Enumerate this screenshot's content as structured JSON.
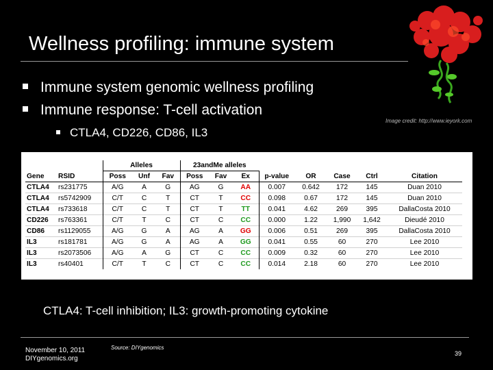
{
  "slide": {
    "title": "Wellness profiling: immune system",
    "image_credit": "Image credit: http://www.ieyork.com",
    "bullets": [
      "Immune system genomic wellness profiling",
      "Immune response: T-cell activation"
    ],
    "sub_bullets": [
      "CTLA4, CD226, CD86, IL3"
    ],
    "conclusion": "CTLA4: T-cell inhibition; IL3: growth-promoting cytokine",
    "footer": {
      "date": "November 10, 2011",
      "org": "DIYgenomics.org",
      "source": "Source: DIYgenomics",
      "page": "39"
    }
  },
  "colors": {
    "background": "#000000",
    "molecule_red": "#d81e1e",
    "molecule_green": "#3aa81e",
    "genotype_red": "#e00000",
    "genotype_green": "#1f9a1f"
  },
  "icons": [
    "protein-structure-image"
  ],
  "table": {
    "group_headers": {
      "alleles": "Alleles",
      "twentythree": "23andMe alleles"
    },
    "headers": [
      "Gene",
      "RSID",
      "Poss",
      "Unf",
      "Fav",
      "Poss",
      "Fav",
      "Ex",
      "p-value",
      "OR",
      "Case",
      "Ctrl",
      "Citation"
    ],
    "rows": [
      [
        "CTLA4",
        "rs231775",
        "A/G",
        "A",
        "G",
        "AG",
        "G",
        "AA",
        "0.007",
        "0.642",
        "172",
        "145",
        "Duan 2010"
      ],
      [
        "CTLA4",
        "rs5742909",
        "C/T",
        "C",
        "T",
        "CT",
        "T",
        "CC",
        "0.098",
        "0.67",
        "172",
        "145",
        "Duan 2010"
      ],
      [
        "CTLA4",
        "rs733618",
        "C/T",
        "C",
        "T",
        "CT",
        "T",
        "TT",
        "0.041",
        "4.62",
        "269",
        "395",
        "DallaCosta 2010"
      ],
      [
        "CD226",
        "rs763361",
        "C/T",
        "T",
        "C",
        "CT",
        "C",
        "CC",
        "0.000",
        "1.22",
        "1,990",
        "1,642",
        "Dieudé 2010"
      ],
      [
        "CD86",
        "rs1129055",
        "A/G",
        "G",
        "A",
        "AG",
        "A",
        "GG",
        "0.006",
        "0.51",
        "269",
        "395",
        "DallaCosta 2010"
      ],
      [
        "IL3",
        "rs181781",
        "A/G",
        "G",
        "A",
        "AG",
        "A",
        "GG",
        "0.041",
        "0.55",
        "60",
        "270",
        "Lee 2010"
      ],
      [
        "IL3",
        "rs2073506",
        "A/G",
        "A",
        "G",
        "CT",
        "C",
        "CC",
        "0.009",
        "0.32",
        "60",
        "270",
        "Lee 2010"
      ],
      [
        "IL3",
        "rs40401",
        "C/T",
        "T",
        "C",
        "CT",
        "C",
        "CC",
        "0.014",
        "2.18",
        "60",
        "270",
        "Lee 2010"
      ]
    ],
    "ex_colors": [
      "red",
      "red",
      "green",
      "green",
      "red",
      "green",
      "green",
      "green"
    ]
  }
}
